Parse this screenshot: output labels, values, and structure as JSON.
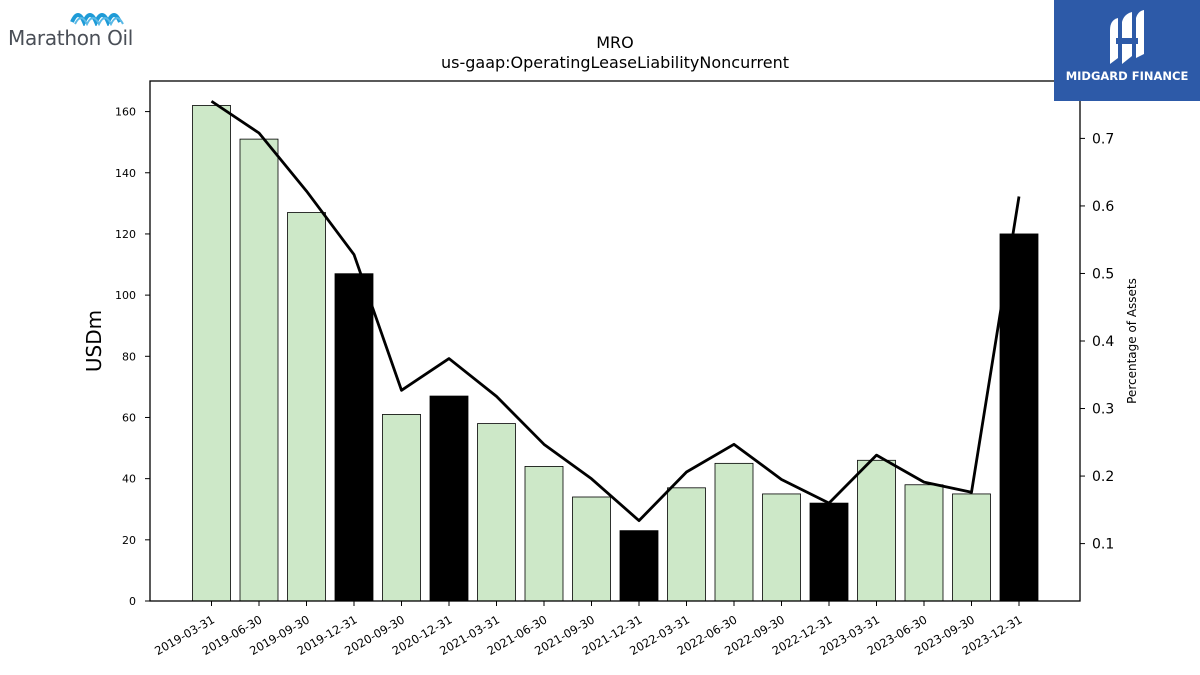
{
  "chart_data": {
    "type": "bar",
    "title": "MRO",
    "subtitle": "us-gaap:OperatingLeaseLiabilityNoncurrent",
    "ylabel": "USDm",
    "y2label": "Percentage of Assets",
    "ylim": [
      0,
      170
    ],
    "y2lim": [
      0.015,
      0.785
    ],
    "yticks": [
      0,
      20,
      40,
      60,
      80,
      100,
      120,
      140,
      160
    ],
    "y2ticks": [
      0.1,
      0.2,
      0.3,
      0.4,
      0.5,
      0.6,
      0.7
    ],
    "categories": [
      "2019-03-31",
      "2019-06-30",
      "2019-09-30",
      "2019-12-31",
      "2020-09-30",
      "2020-12-31",
      "2021-03-31",
      "2021-06-30",
      "2021-09-30",
      "2021-12-31",
      "2022-03-31",
      "2022-06-30",
      "2022-09-30",
      "2022-12-31",
      "2023-03-31",
      "2023-06-30",
      "2023-09-30",
      "2023-12-31"
    ],
    "series": [
      {
        "type": "bar",
        "values": [
          162,
          151,
          127,
          107,
          61,
          67,
          58,
          44,
          34,
          23,
          37,
          45,
          35,
          32,
          46,
          38,
          35,
          120
        ],
        "highlight": [
          false,
          false,
          false,
          true,
          false,
          true,
          false,
          false,
          false,
          true,
          false,
          false,
          false,
          true,
          false,
          false,
          false,
          true
        ],
        "color": "#cde8c8",
        "highlight_color": "#000000"
      },
      {
        "type": "line",
        "axis": "right",
        "values": [
          0.755,
          0.708,
          0.622,
          0.528,
          0.327,
          0.374,
          0.318,
          0.247,
          0.196,
          0.134,
          0.206,
          0.247,
          0.195,
          0.16,
          0.231,
          0.191,
          0.176,
          0.614
        ],
        "color": "#000000"
      }
    ],
    "grid": false,
    "legend": "none"
  },
  "logos": {
    "left_text": "Marathon Oil",
    "left_wave_colors": [
      "#1e9bd7",
      "#5ab9e6"
    ],
    "right_text": "MIDGARD FINANCE",
    "right_bg": "#2d5aa8"
  }
}
